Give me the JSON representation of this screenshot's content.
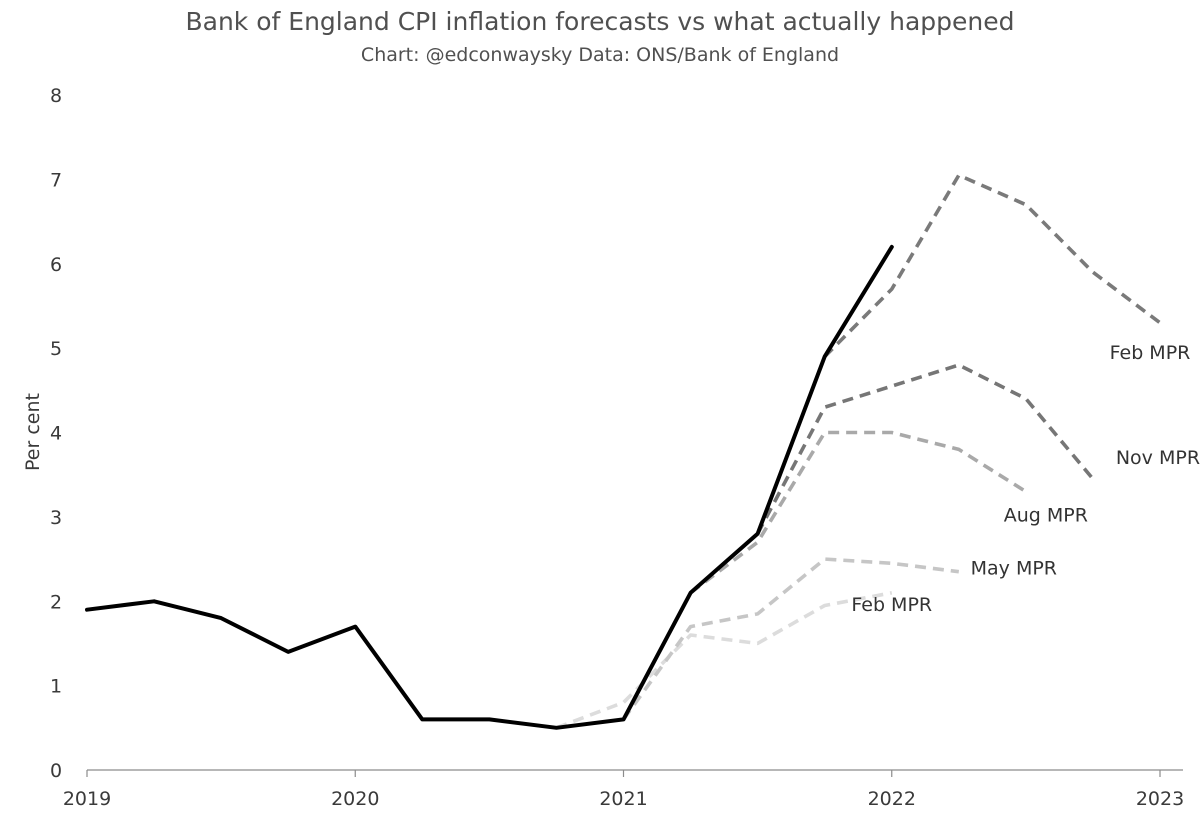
{
  "chart_data": {
    "type": "line",
    "title": "Bank of England CPI inflation forecasts vs what actually happened",
    "subtitle": "Chart: @edconwaysky Data: ONS/Bank of England",
    "ylabel": "Per cent",
    "xlabel": "",
    "ylim": [
      0,
      8
    ],
    "xlim": [
      2019.0,
      2023.0
    ],
    "x_ticks": [
      "2019",
      "2020",
      "2021",
      "2022",
      "2023"
    ],
    "y_ticks": [
      "0",
      "1",
      "2",
      "3",
      "4",
      "5",
      "6",
      "7",
      "8"
    ],
    "grid": false,
    "series": [
      {
        "name": "",
        "style": "solid",
        "color": "#000000",
        "x": [
          2019.0,
          2019.25,
          2019.5,
          2019.75,
          2020.0,
          2020.25,
          2020.5,
          2020.75,
          2021.0,
          2021.25,
          2021.5,
          2021.75,
          2022.0
        ],
        "values": [
          1.9,
          2.0,
          1.8,
          1.4,
          1.7,
          0.6,
          0.6,
          0.5,
          0.6,
          2.1,
          2.8,
          4.9,
          6.2
        ]
      },
      {
        "name": "Feb MPR",
        "style": "dashed",
        "color": "#dcdcdc",
        "x": [
          2020.75,
          2021.0,
          2021.25,
          2021.5,
          2021.75,
          2022.0
        ],
        "values": [
          0.5,
          0.8,
          1.6,
          1.5,
          1.95,
          2.1
        ]
      },
      {
        "name": "May MPR",
        "style": "dashed",
        "color": "#c6c6c6",
        "x": [
          2021.0,
          2021.25,
          2021.5,
          2021.75,
          2022.0,
          2022.25
        ],
        "values": [
          0.6,
          1.7,
          1.85,
          2.5,
          2.45,
          2.35
        ]
      },
      {
        "name": "Aug MPR",
        "style": "dashed",
        "color": "#a9a9a9",
        "x": [
          2021.25,
          2021.5,
          2021.75,
          2022.0,
          2022.25,
          2022.5
        ],
        "values": [
          2.1,
          2.7,
          4.0,
          4.0,
          3.8,
          3.3
        ]
      },
      {
        "name": "Nov MPR",
        "style": "dashed",
        "color": "#767676",
        "x": [
          2021.5,
          2021.75,
          2022.0,
          2022.25,
          2022.5,
          2022.75
        ],
        "values": [
          2.8,
          4.3,
          4.55,
          4.8,
          4.4,
          3.45
        ]
      },
      {
        "name": "Feb MPR",
        "style": "dashed",
        "color": "#7a7a7a",
        "x": [
          2021.75,
          2022.0,
          2022.25,
          2022.5,
          2022.75,
          2023.0
        ],
        "values": [
          4.9,
          5.7,
          7.05,
          6.7,
          5.9,
          5.3
        ]
      }
    ]
  }
}
